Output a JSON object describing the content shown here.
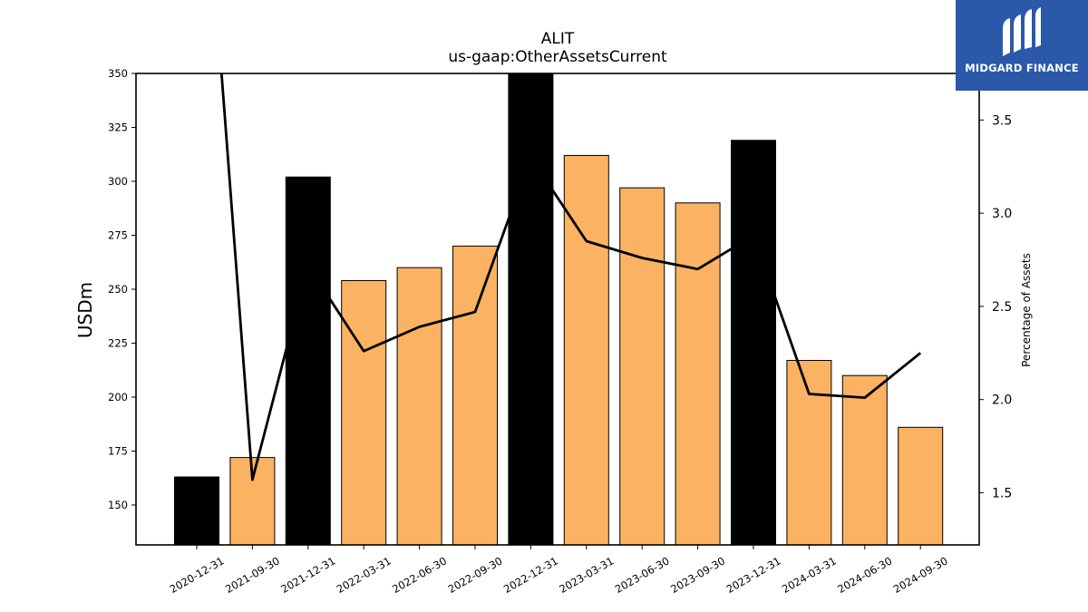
{
  "chart_data": {
    "type": "bar",
    "title": "ALIT",
    "subtitle": "us-gaap:OtherAssetsCurrent",
    "ylabel": "USDm",
    "y2label": "Percentage of Assets",
    "categories": [
      "2020-12-31",
      "2021-09-30",
      "2021-12-31",
      "2022-03-31",
      "2022-06-30",
      "2022-09-30",
      "2022-12-31",
      "2023-03-31",
      "2023-06-30",
      "2023-09-30",
      "2023-12-31",
      "2024-03-31",
      "2024-06-30",
      "2024-09-30"
    ],
    "series": [
      {
        "type": "bar",
        "values": [
          163,
          172,
          302,
          254,
          260,
          270,
          350,
          312,
          297,
          290,
          319,
          217,
          210,
          186
        ],
        "colors": [
          "#000000",
          "#fbb262",
          "#000000",
          "#fbb262",
          "#fbb262",
          "#fbb262",
          "#000000",
          "#fbb262",
          "#fbb262",
          "#fbb262",
          "#000000",
          "#fbb262",
          "#fbb262",
          "#fbb262"
        ]
      },
      {
        "type": "line",
        "axis": "right",
        "color": "#000000",
        "values": [
          5.5,
          1.57,
          2.72,
          2.26,
          2.39,
          2.47,
          3.3,
          2.85,
          2.76,
          2.7,
          2.88,
          2.03,
          2.01,
          2.25
        ]
      }
    ],
    "ylim": [
      131.5,
      350
    ],
    "yticks": [
      150,
      175,
      200,
      225,
      250,
      275,
      300,
      325,
      350
    ],
    "y2lim": [
      1.22,
      3.75
    ],
    "y2ticks": [
      "1.5",
      "2.0",
      "2.5",
      "3.0",
      "3.5"
    ],
    "grid": false,
    "legend": "none"
  },
  "logo": {
    "text": "MIDGARD FINANCE",
    "background": "#2b58a8"
  }
}
